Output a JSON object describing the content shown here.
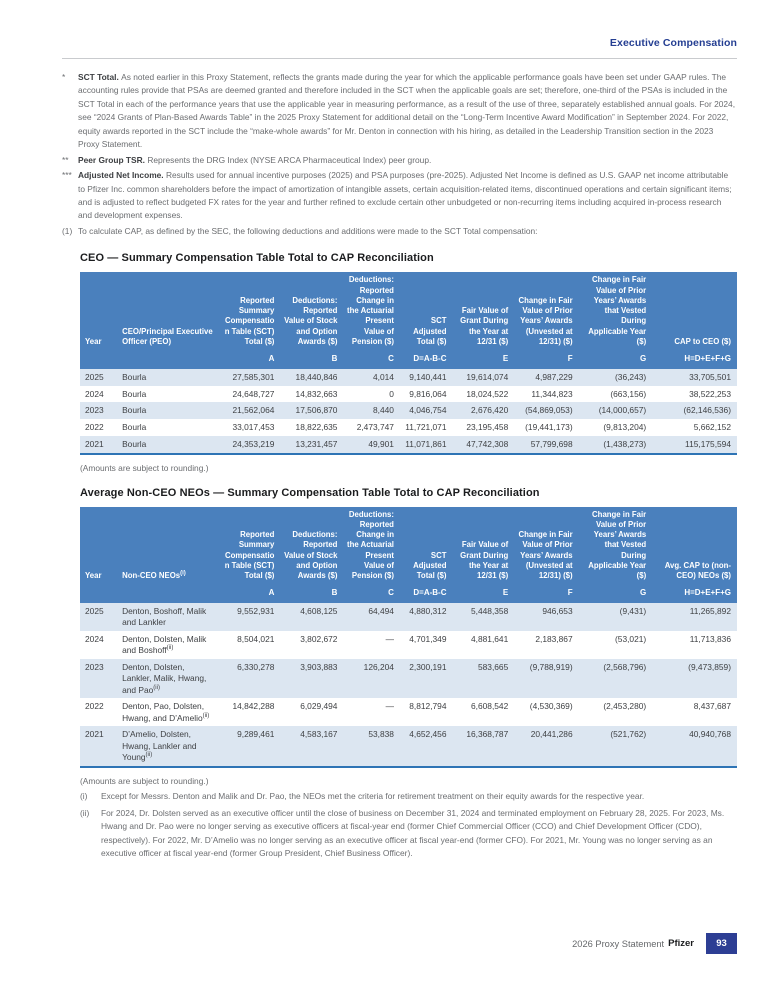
{
  "header": {
    "section_label": "Executive Compensation"
  },
  "footnotes_top": [
    {
      "marker": "*",
      "lead": "SCT Total.",
      "text": "As noted earlier in this Proxy Statement, reflects the grants made during the year for which the applicable performance goals have been set under GAAP rules. The accounting rules provide that PSAs are deemed granted and therefore included in the SCT when the applicable goals are set; therefore, one-third of the PSAs is included in the SCT Total in each of the performance years that use the applicable year in measuring performance, as a result of the use of three, separately established annual goals. For 2024, see “2024 Grants of Plan-Based Awards Table” in the 2025 Proxy Statement for additional detail on the “Long-Term Incentive Award Modification” in September 2024. For 2022, equity awards reported in the SCT include the “make-whole awards” for Mr. Denton in connection with his hiring, as detailed in the Leadership Transition section in the 2023 Proxy Statement."
    },
    {
      "marker": "**",
      "lead": "Peer Group TSR.",
      "text": "Represents the DRG Index (NYSE ARCA Pharmaceutical Index) peer group."
    },
    {
      "marker": "***",
      "lead": "Adjusted Net Income.",
      "text": "Results used for annual incentive purposes (2025) and PSA purposes (pre-2025). Adjusted Net Income is defined as U.S. GAAP net income attributable to Pfizer Inc. common shareholders before the impact of amortization of intangible assets, certain acquisition-related items, discontinued operations and certain significant items; and is adjusted to reflect budgeted FX rates for the year and further refined to exclude certain other unbudgeted or non-recurring items including acquired in-process research and development expenses."
    },
    {
      "marker": "(1)",
      "lead": "",
      "text": "To calculate CAP, as defined by the SEC, the following deductions and additions were made to the SCT Total compensation:"
    }
  ],
  "tables": {
    "ceo": {
      "title": "CEO — Summary Compensation Table Total to CAP Reconciliation",
      "headers": [
        {
          "label": "Year",
          "sup": ""
        },
        {
          "label": "CEO/Principal Executive Officer (PEO)",
          "sup": ""
        },
        {
          "label": "Reported Summary Compensation Table (SCT) Total ($)",
          "sup": ""
        },
        {
          "label": "Deductions: Reported Value of Stock and Option Awards ($)",
          "sup": ""
        },
        {
          "label": "Deductions: Reported Change in the Actuarial Present Value of Pension ($)",
          "sup": ""
        },
        {
          "label": "SCT Adjusted Total ($)",
          "sup": ""
        },
        {
          "label": "Fair Value of Grant During the Year at 12/31 ($)",
          "sup": ""
        },
        {
          "label": "Change in Fair Value of Prior Years’ Awards (Unvested at 12/31) ($)",
          "sup": ""
        },
        {
          "label": "Change in Fair Value of Prior Years’ Awards that Vested During Applicable Year ($)",
          "sup": ""
        },
        {
          "label": "CAP to CEO ($)",
          "sup": ""
        }
      ],
      "letters": [
        "",
        "",
        "A",
        "B",
        "C",
        "D=A-B-C",
        "E",
        "F",
        "G",
        "H=D+E+F+G"
      ],
      "rows": [
        {
          "year": "2025",
          "name": "Bourla",
          "name_sup": "",
          "values": [
            "27,585,301",
            "18,440,846",
            "4,014",
            "9,140,441",
            "19,614,074",
            "4,987,229",
            "(36,243)",
            "33,705,501"
          ]
        },
        {
          "year": "2024",
          "name": "Bourla",
          "name_sup": "",
          "values": [
            "24,648,727",
            "14,832,663",
            "0",
            "9,816,064",
            "18,024,522",
            "11,344,823",
            "(663,156)",
            "38,522,253"
          ]
        },
        {
          "year": "2023",
          "name": "Bourla",
          "name_sup": "",
          "values": [
            "21,562,064",
            "17,506,870",
            "8,440",
            "4,046,754",
            "2,676,420",
            "(54,869,053)",
            "(14,000,657)",
            "(62,146,536)"
          ]
        },
        {
          "year": "2022",
          "name": "Bourla",
          "name_sup": "",
          "values": [
            "33,017,453",
            "18,822,635",
            "2,473,747",
            "11,721,071",
            "23,195,458",
            "(19,441,173)",
            "(9,813,204)",
            "5,662,152"
          ]
        },
        {
          "year": "2021",
          "name": "Bourla",
          "name_sup": "",
          "values": [
            "24,353,219",
            "13,231,457",
            "49,901",
            "11,071,861",
            "47,742,308",
            "57,799,698",
            "(1,438,273)",
            "115,175,594"
          ]
        }
      ],
      "rounding_note": "(Amounts are subject to rounding.)"
    },
    "neo": {
      "title": "Average Non-CEO NEOs — Summary Compensation Table Total to CAP Reconciliation",
      "headers": [
        {
          "label": "Year",
          "sup": ""
        },
        {
          "label": "Non-CEO NEOs",
          "sup": "(i)"
        },
        {
          "label": "Reported Summary Compensation Table (SCT) Total ($)",
          "sup": ""
        },
        {
          "label": "Deductions: Reported Value of Stock and Option Awards ($)",
          "sup": ""
        },
        {
          "label": "Deductions: Reported Change in the Actuarial Present Value of Pension ($)",
          "sup": ""
        },
        {
          "label": "SCT Adjusted Total ($)",
          "sup": ""
        },
        {
          "label": "Fair Value of Grant During the Year at 12/31 ($)",
          "sup": ""
        },
        {
          "label": "Change in Fair Value of Prior Years’ Awards (Unvested at 12/31) ($)",
          "sup": ""
        },
        {
          "label": "Change in Fair Value of Prior Years’ Awards that Vested During Applicable Year ($)",
          "sup": ""
        },
        {
          "label": "Avg. CAP to (non-CEO) NEOs ($)",
          "sup": ""
        }
      ],
      "letters": [
        "",
        "",
        "A",
        "B",
        "C",
        "D=A-B-C",
        "E",
        "F",
        "G",
        "H=D+E+F+G"
      ],
      "rows": [
        {
          "year": "2025",
          "name": "Denton, Boshoff, Malik and Lankler",
          "name_sup": "",
          "values": [
            "9,552,931",
            "4,608,125",
            "64,494",
            "4,880,312",
            "5,448,358",
            "946,653",
            "(9,431)",
            "11,265,892"
          ]
        },
        {
          "year": "2024",
          "name": "Denton, Dolsten, Malik and Boshoff",
          "name_sup": "(ii)",
          "values": [
            "8,504,021",
            "3,802,672",
            "—",
            "4,701,349",
            "4,881,641",
            "2,183,867",
            "(53,021)",
            "11,713,836"
          ]
        },
        {
          "year": "2023",
          "name": "Denton, Dolsten, Lankler, Malik, Hwang, and Pao",
          "name_sup": "(ii)",
          "values": [
            "6,330,278",
            "3,903,883",
            "126,204",
            "2,300,191",
            "583,665",
            "(9,788,919)",
            "(2,568,796)",
            "(9,473,859)"
          ]
        },
        {
          "year": "2022",
          "name": "Denton, Pao, Dolsten, Hwang, and D’Amelio",
          "name_sup": "(ii)",
          "values": [
            "14,842,288",
            "6,029,494",
            "—",
            "8,812,794",
            "6,608,542",
            "(4,530,369)",
            "(2,453,280)",
            "8,437,687"
          ]
        },
        {
          "year": "2021",
          "name": "D’Amelio, Dolsten, Hwang, Lankler and Young",
          "name_sup": "(ii)",
          "values": [
            "9,289,461",
            "4,583,167",
            "53,838",
            "4,652,456",
            "16,368,787",
            "20,441,286",
            "(521,762)",
            "40,940,768"
          ]
        }
      ],
      "rounding_note": "(Amounts are subject to rounding.)"
    }
  },
  "footnotes_bottom": [
    {
      "marker": "(i)",
      "text": "Except for Messrs. Denton and Malik and Dr. Pao, the NEOs met the criteria for retirement treatment on their equity awards for the respective year."
    },
    {
      "marker": "(ii)",
      "text": "For 2024, Dr. Dolsten served as an executive officer until the close of business on December 31, 2024 and terminated employment on February 28, 2025. For 2023, Ms. Hwang and Dr. Pao were no longer serving as executive officers at fiscal-year end (former Chief Commercial Officer (CCO) and Chief Development Officer (CDO), respectively). For 2022, Mr. D’Amelio was no longer serving as an executive officer at fiscal year-end (former CFO). For 2021, Mr. Young was no longer serving as an executive officer at fiscal year-end (former Group President, Chief Business Officer)."
    }
  ],
  "footer": {
    "statement": "2026 Proxy Statement",
    "brand": "Pfizer",
    "page_number": "93"
  }
}
